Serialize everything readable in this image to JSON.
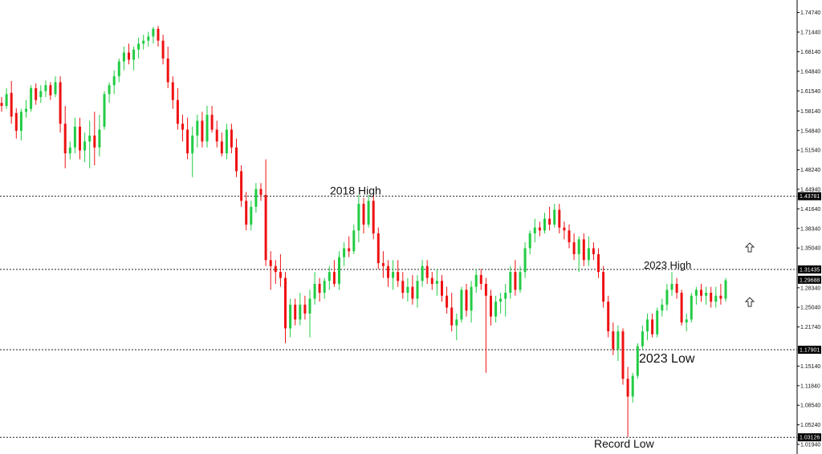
{
  "chart_data": {
    "type": "candlestick",
    "title": "",
    "xlabel": "",
    "ylabel": "",
    "ylim": [
      1.0086,
      1.7645
    ],
    "y_ticks": [
      "1.74740",
      "1.71440",
      "1.68140",
      "1.64840",
      "1.61540",
      "1.58140",
      "1.54840",
      "1.51540",
      "1.48240",
      "1.44940",
      "1.41640",
      "1.38340",
      "1.35040",
      "1.28340",
      "1.25040",
      "1.21740",
      "1.15140",
      "1.11840",
      "1.08540",
      "1.05240",
      "1.01940"
    ],
    "level_lines": [
      {
        "value": 1.43781,
        "label": "1.43781",
        "annotation": "2018 High"
      },
      {
        "value": 1.31435,
        "label": "1.31435",
        "annotation": "2023 High"
      },
      {
        "value": 1.17901,
        "label": "1.17901",
        "annotation": "2023 Low"
      },
      {
        "value": 1.03126,
        "label": "1.03126",
        "annotation": "Record Low"
      }
    ],
    "current_price": {
      "value": 1.29688,
      "label": "1.29688"
    },
    "up_color": "#22cc44",
    "down_color": "#ee1111",
    "candles": [
      [
        1.595,
        1.605,
        1.58,
        1.59
      ],
      [
        1.59,
        1.62,
        1.585,
        1.61
      ],
      [
        1.612,
        1.632,
        1.56,
        1.572
      ],
      [
        1.578,
        1.586,
        1.535,
        1.548
      ],
      [
        1.548,
        1.585,
        1.532,
        1.58
      ],
      [
        1.58,
        1.6,
        1.57,
        1.585
      ],
      [
        1.585,
        1.625,
        1.58,
        1.62
      ],
      [
        1.62,
        1.628,
        1.592,
        1.6
      ],
      [
        1.605,
        1.625,
        1.595,
        1.615
      ],
      [
        1.615,
        1.633,
        1.605,
        1.625
      ],
      [
        1.625,
        1.63,
        1.6,
        1.608
      ],
      [
        1.61,
        1.64,
        1.605,
        1.63
      ],
      [
        1.63,
        1.64,
        1.545,
        1.56
      ],
      [
        1.56,
        1.59,
        1.485,
        1.51
      ],
      [
        1.51,
        1.53,
        1.5,
        1.52
      ],
      [
        1.52,
        1.57,
        1.51,
        1.555
      ],
      [
        1.555,
        1.57,
        1.5,
        1.515
      ],
      [
        1.515,
        1.545,
        1.495,
        1.53
      ],
      [
        1.53,
        1.565,
        1.485,
        1.54
      ],
      [
        1.54,
        1.58,
        1.49,
        1.52
      ],
      [
        1.52,
        1.575,
        1.505,
        1.55
      ],
      [
        1.555,
        1.615,
        1.55,
        1.61
      ],
      [
        1.61,
        1.63,
        1.595,
        1.625
      ],
      [
        1.625,
        1.65,
        1.61,
        1.64
      ],
      [
        1.64,
        1.67,
        1.63,
        1.665
      ],
      [
        1.665,
        1.69,
        1.65,
        1.68
      ],
      [
        1.68,
        1.695,
        1.66,
        1.668
      ],
      [
        1.668,
        1.69,
        1.65,
        1.685
      ],
      [
        1.685,
        1.705,
        1.67,
        1.695
      ],
      [
        1.695,
        1.71,
        1.685,
        1.7
      ],
      [
        1.7,
        1.715,
        1.69,
        1.707
      ],
      [
        1.707,
        1.723,
        1.695,
        1.72
      ],
      [
        1.72,
        1.725,
        1.69,
        1.7
      ],
      [
        1.7,
        1.71,
        1.66,
        1.67
      ],
      [
        1.67,
        1.69,
        1.62,
        1.63
      ],
      [
        1.63,
        1.64,
        1.585,
        1.6
      ],
      [
        1.6,
        1.62,
        1.55,
        1.56
      ],
      [
        1.56,
        1.575,
        1.53,
        1.55
      ],
      [
        1.55,
        1.57,
        1.5,
        1.51
      ],
      [
        1.51,
        1.555,
        1.47,
        1.54
      ],
      [
        1.54,
        1.575,
        1.52,
        1.565
      ],
      [
        1.565,
        1.58,
        1.52,
        1.53
      ],
      [
        1.53,
        1.59,
        1.52,
        1.575
      ],
      [
        1.575,
        1.59,
        1.545,
        1.55
      ],
      [
        1.55,
        1.565,
        1.52,
        1.53
      ],
      [
        1.53,
        1.545,
        1.505,
        1.51
      ],
      [
        1.51,
        1.56,
        1.5,
        1.55
      ],
      [
        1.55,
        1.56,
        1.51,
        1.52
      ],
      [
        1.52,
        1.535,
        1.47,
        1.48
      ],
      [
        1.48,
        1.49,
        1.42,
        1.43
      ],
      [
        1.43,
        1.445,
        1.38,
        1.39
      ],
      [
        1.39,
        1.43,
        1.38,
        1.42
      ],
      [
        1.42,
        1.46,
        1.41,
        1.45
      ],
      [
        1.45,
        1.46,
        1.43,
        1.44
      ],
      [
        1.44,
        1.5,
        1.32,
        1.33
      ],
      [
        1.33,
        1.345,
        1.28,
        1.32
      ],
      [
        1.32,
        1.33,
        1.29,
        1.31
      ],
      [
        1.31,
        1.34,
        1.285,
        1.3
      ],
      [
        1.3,
        1.31,
        1.19,
        1.215
      ],
      [
        1.215,
        1.265,
        1.2,
        1.255
      ],
      [
        1.255,
        1.265,
        1.22,
        1.23
      ],
      [
        1.23,
        1.275,
        1.22,
        1.255
      ],
      [
        1.255,
        1.27,
        1.23,
        1.24
      ],
      [
        1.24,
        1.28,
        1.2,
        1.265
      ],
      [
        1.265,
        1.31,
        1.255,
        1.29
      ],
      [
        1.29,
        1.3,
        1.26,
        1.275
      ],
      [
        1.275,
        1.3,
        1.265,
        1.295
      ],
      [
        1.295,
        1.32,
        1.28,
        1.31
      ],
      [
        1.31,
        1.33,
        1.285,
        1.29
      ],
      [
        1.29,
        1.345,
        1.28,
        1.335
      ],
      [
        1.335,
        1.36,
        1.32,
        1.35
      ],
      [
        1.35,
        1.37,
        1.335,
        1.345
      ],
      [
        1.345,
        1.39,
        1.34,
        1.38
      ],
      [
        1.38,
        1.44,
        1.36,
        1.425
      ],
      [
        1.425,
        1.435,
        1.375,
        1.39
      ],
      [
        1.39,
        1.44,
        1.385,
        1.43
      ],
      [
        1.43,
        1.44,
        1.365,
        1.375
      ],
      [
        1.375,
        1.385,
        1.315,
        1.325
      ],
      [
        1.325,
        1.345,
        1.3,
        1.32
      ],
      [
        1.32,
        1.33,
        1.285,
        1.3
      ],
      [
        1.3,
        1.33,
        1.28,
        1.31
      ],
      [
        1.31,
        1.33,
        1.285,
        1.295
      ],
      [
        1.295,
        1.31,
        1.265,
        1.275
      ],
      [
        1.275,
        1.3,
        1.26,
        1.285
      ],
      [
        1.285,
        1.305,
        1.255,
        1.265
      ],
      [
        1.265,
        1.305,
        1.25,
        1.295
      ],
      [
        1.295,
        1.33,
        1.285,
        1.32
      ],
      [
        1.32,
        1.33,
        1.29,
        1.3
      ],
      [
        1.3,
        1.31,
        1.28,
        1.29
      ],
      [
        1.29,
        1.315,
        1.27,
        1.295
      ],
      [
        1.295,
        1.305,
        1.26,
        1.27
      ],
      [
        1.27,
        1.285,
        1.24,
        1.25
      ],
      [
        1.25,
        1.275,
        1.21,
        1.22
      ],
      [
        1.22,
        1.24,
        1.195,
        1.23
      ],
      [
        1.23,
        1.285,
        1.225,
        1.28
      ],
      [
        1.28,
        1.29,
        1.235,
        1.245
      ],
      [
        1.245,
        1.295,
        1.225,
        1.285
      ],
      [
        1.285,
        1.315,
        1.275,
        1.305
      ],
      [
        1.305,
        1.315,
        1.28,
        1.29
      ],
      [
        1.29,
        1.3,
        1.14,
        1.27
      ],
      [
        1.27,
        1.28,
        1.22,
        1.235
      ],
      [
        1.235,
        1.27,
        1.225,
        1.26
      ],
      [
        1.26,
        1.275,
        1.24,
        1.265
      ],
      [
        1.265,
        1.29,
        1.235,
        1.275
      ],
      [
        1.275,
        1.32,
        1.265,
        1.31
      ],
      [
        1.31,
        1.33,
        1.27,
        1.28
      ],
      [
        1.28,
        1.32,
        1.275,
        1.31
      ],
      [
        1.31,
        1.36,
        1.3,
        1.35
      ],
      [
        1.35,
        1.38,
        1.34,
        1.375
      ],
      [
        1.375,
        1.4,
        1.36,
        1.385
      ],
      [
        1.385,
        1.395,
        1.37,
        1.38
      ],
      [
        1.38,
        1.41,
        1.375,
        1.4
      ],
      [
        1.4,
        1.42,
        1.38,
        1.39
      ],
      [
        1.39,
        1.425,
        1.385,
        1.415
      ],
      [
        1.415,
        1.425,
        1.375,
        1.385
      ],
      [
        1.385,
        1.395,
        1.365,
        1.38
      ],
      [
        1.38,
        1.39,
        1.35,
        1.36
      ],
      [
        1.36,
        1.375,
        1.33,
        1.34
      ],
      [
        1.34,
        1.37,
        1.31,
        1.365
      ],
      [
        1.365,
        1.375,
        1.32,
        1.33
      ],
      [
        1.33,
        1.37,
        1.32,
        1.35
      ],
      [
        1.35,
        1.36,
        1.33,
        1.34
      ],
      [
        1.34,
        1.35,
        1.3,
        1.31
      ],
      [
        1.31,
        1.32,
        1.25,
        1.26
      ],
      [
        1.26,
        1.27,
        1.2,
        1.21
      ],
      [
        1.21,
        1.225,
        1.17,
        1.18
      ],
      [
        1.18,
        1.22,
        1.16,
        1.21
      ],
      [
        1.21,
        1.215,
        1.12,
        1.13
      ],
      [
        1.13,
        1.15,
        1.032,
        1.1
      ],
      [
        1.1,
        1.14,
        1.09,
        1.135
      ],
      [
        1.135,
        1.19,
        1.13,
        1.185
      ],
      [
        1.185,
        1.22,
        1.18,
        1.21
      ],
      [
        1.21,
        1.24,
        1.195,
        1.23
      ],
      [
        1.23,
        1.24,
        1.2,
        1.205
      ],
      [
        1.205,
        1.25,
        1.2,
        1.245
      ],
      [
        1.245,
        1.265,
        1.235,
        1.255
      ],
      [
        1.255,
        1.29,
        1.245,
        1.28
      ],
      [
        1.28,
        1.31,
        1.27,
        1.29
      ],
      [
        1.29,
        1.3,
        1.265,
        1.275
      ],
      [
        1.275,
        1.28,
        1.22,
        1.225
      ],
      [
        1.225,
        1.24,
        1.21,
        1.23
      ],
      [
        1.23,
        1.275,
        1.225,
        1.27
      ],
      [
        1.27,
        1.285,
        1.255,
        1.28
      ],
      [
        1.28,
        1.29,
        1.26,
        1.27
      ],
      [
        1.27,
        1.285,
        1.255,
        1.275
      ],
      [
        1.275,
        1.285,
        1.25,
        1.26
      ],
      [
        1.26,
        1.285,
        1.25,
        1.27
      ],
      [
        1.27,
        1.29,
        1.255,
        1.265
      ],
      [
        1.265,
        1.3,
        1.26,
        1.296
      ]
    ]
  }
}
